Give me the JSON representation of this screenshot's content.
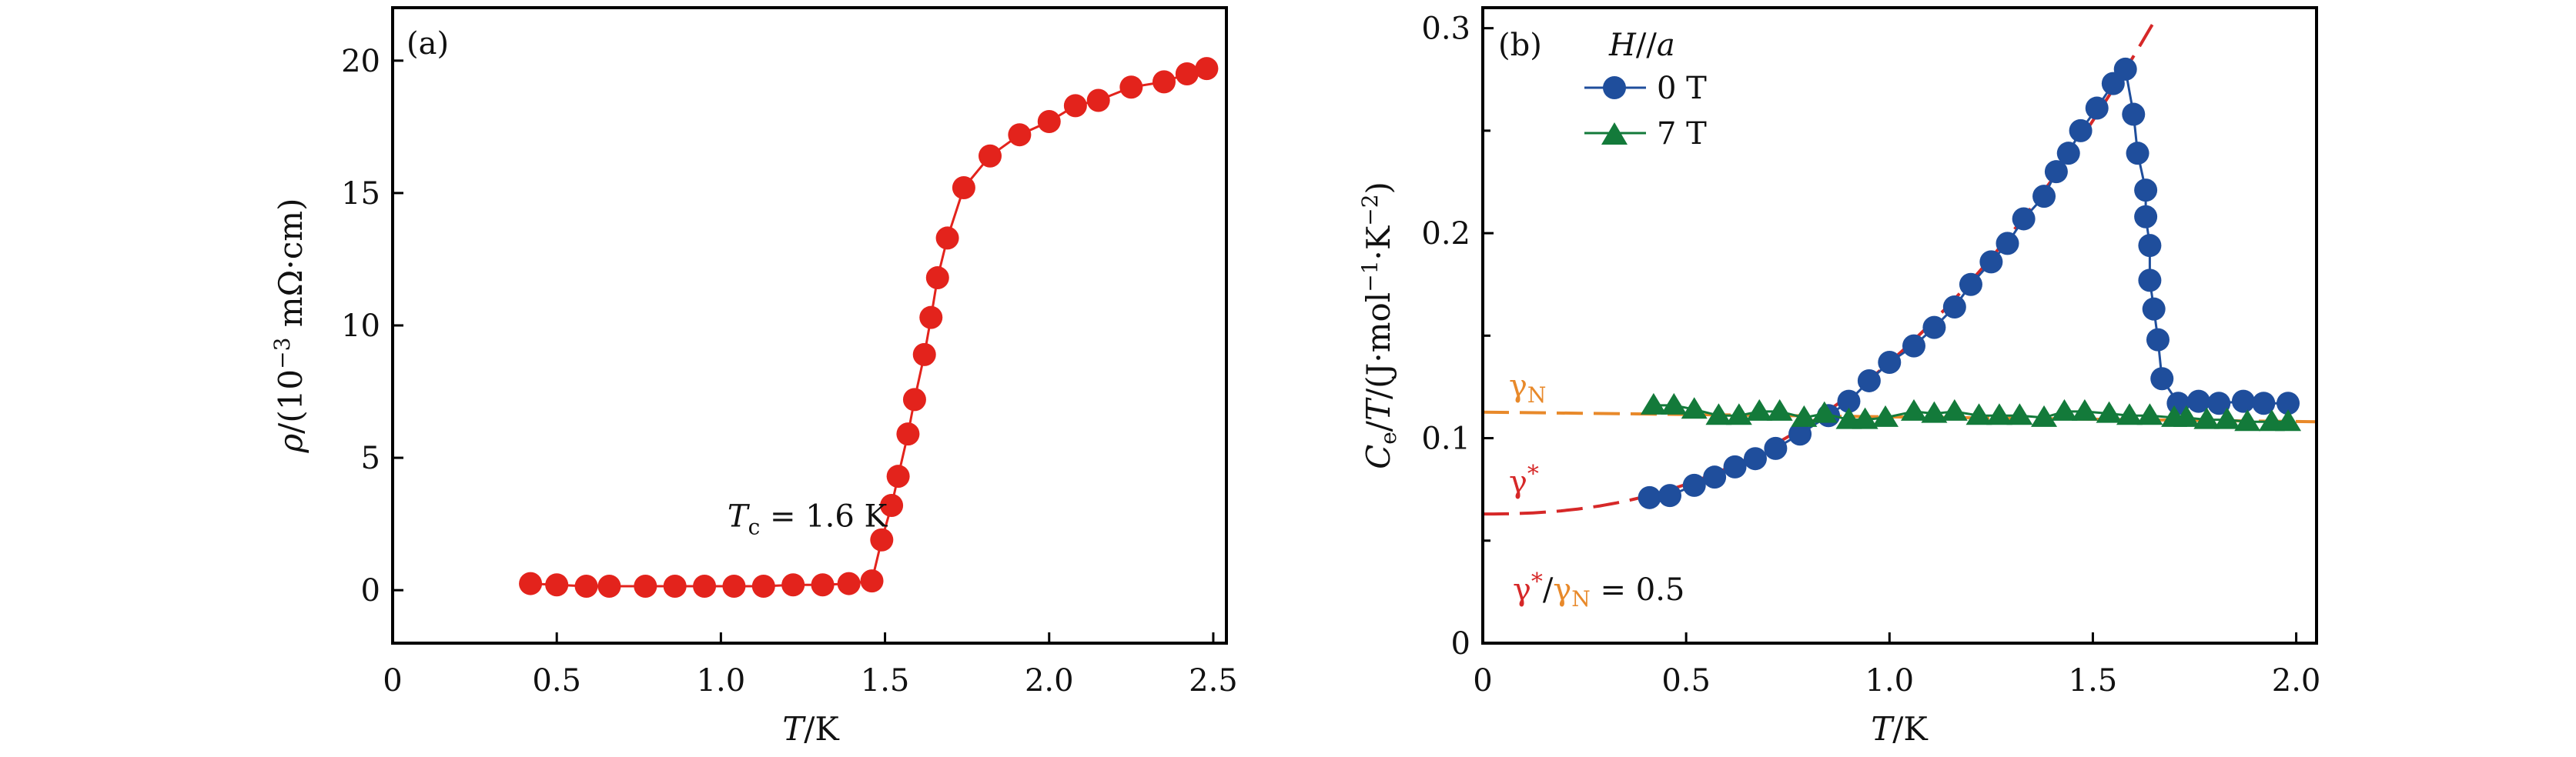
{
  "chart_data": [
    {
      "type": "line",
      "panel_label": "(a)",
      "title": "",
      "xlabel": "T/K",
      "xlabel_parts": {
        "var": "T",
        "unit": "/K"
      },
      "ylabel": "ρ/(10^-3 mΩ·cm)",
      "ylabel_parts": {
        "var": "ρ",
        "pre": "/(10",
        "exp": "−3",
        "post": " mΩ·cm)"
      },
      "xlim": [
        0,
        2.54
      ],
      "ylim": [
        -2,
        22
      ],
      "xticks": [
        0,
        0.5,
        1.0,
        1.5,
        2.0,
        2.5
      ],
      "xtick_labels": [
        "0",
        "0.5",
        "1.0",
        "1.5",
        "2.0",
        "2.5"
      ],
      "yticks": [
        0,
        5,
        10,
        15,
        20
      ],
      "ytick_labels": [
        "0",
        "5",
        "10",
        "15",
        "20"
      ],
      "grid": false,
      "annotation": {
        "var": "T",
        "sub": "c",
        "text": " = 1.6 K",
        "x": 1.02,
        "y": 2.4
      },
      "series": [
        {
          "name": "ρ(T)",
          "color": "#e3231c",
          "marker": "circle",
          "x": [
            0.42,
            0.5,
            0.59,
            0.66,
            0.77,
            0.86,
            0.95,
            1.04,
            1.13,
            1.22,
            1.31,
            1.39,
            1.46,
            1.49,
            1.52,
            1.54,
            1.57,
            1.59,
            1.62,
            1.64,
            1.66,
            1.69,
            1.74,
            1.82,
            1.91,
            2.0,
            2.08,
            2.15,
            2.25,
            2.35,
            2.42,
            2.48
          ],
          "y": [
            0.25,
            0.2,
            0.15,
            0.15,
            0.15,
            0.15,
            0.15,
            0.15,
            0.15,
            0.2,
            0.2,
            0.25,
            0.35,
            1.9,
            3.2,
            4.3,
            5.9,
            7.2,
            8.9,
            10.3,
            11.8,
            13.3,
            15.2,
            16.4,
            17.2,
            17.7,
            18.3,
            18.5,
            19.0,
            19.2,
            19.5,
            19.7
          ]
        }
      ]
    },
    {
      "type": "line",
      "panel_label": "(b)",
      "title": "",
      "xlabel": "T/K",
      "xlabel_parts": {
        "var": "T",
        "unit": "/K"
      },
      "ylabel": "Ce/T/(J·mol^-1·K^-2)",
      "ylabel_parts": {
        "var": "C",
        "sub": "e",
        "mid": "/",
        "var2": "T",
        "pre": "/(J·mol",
        "exp1": "−1",
        "mid2": "·K",
        "exp2": "−2",
        "post": ")"
      },
      "xlim": [
        0,
        2.05
      ],
      "ylim": [
        0,
        0.31
      ],
      "xticks": [
        0,
        0.5,
        1.0,
        1.5,
        2.0
      ],
      "xtick_labels": [
        "0",
        "0.5",
        "1.0",
        "1.5",
        "2.0"
      ],
      "yticks": [
        0,
        0.1,
        0.2,
        0.3
      ],
      "ytick_labels": [
        "0",
        "0.1",
        "0.2",
        "0.3"
      ],
      "yminor_ticks": [
        0.05,
        0.15,
        0.25
      ],
      "grid": false,
      "legend": {
        "title": "H//a",
        "title_parts": {
          "var": "H",
          "mid": "//",
          "var2": "a"
        },
        "position": "top-left",
        "entries": [
          "0 T",
          "7 T"
        ]
      },
      "series": [
        {
          "name": "0 T",
          "color": "#1f4e9c",
          "marker": "circle",
          "x": [
            0.41,
            0.46,
            0.52,
            0.57,
            0.62,
            0.67,
            0.72,
            0.78,
            0.85,
            0.9,
            0.95,
            1.0,
            1.06,
            1.11,
            1.16,
            1.2,
            1.25,
            1.29,
            1.33,
            1.38,
            1.41,
            1.44,
            1.47,
            1.51,
            1.55,
            1.58,
            1.6,
            1.61,
            1.63,
            1.63,
            1.64,
            1.64,
            1.65,
            1.66,
            1.67,
            1.71,
            1.76,
            1.81,
            1.87,
            1.92,
            1.98
          ],
          "y": [
            0.071,
            0.072,
            0.077,
            0.081,
            0.086,
            0.09,
            0.095,
            0.102,
            0.111,
            0.118,
            0.128,
            0.137,
            0.145,
            0.154,
            0.164,
            0.175,
            0.186,
            0.195,
            0.207,
            0.218,
            0.23,
            0.239,
            0.25,
            0.261,
            0.273,
            0.28,
            0.258,
            0.239,
            0.221,
            0.208,
            0.194,
            0.177,
            0.163,
            0.148,
            0.129,
            0.117,
            0.118,
            0.117,
            0.118,
            0.117,
            0.117
          ]
        },
        {
          "name": "7 T",
          "color": "#137a3a",
          "marker": "triangle",
          "x": [
            0.42,
            0.47,
            0.52,
            0.58,
            0.63,
            0.68,
            0.73,
            0.79,
            0.84,
            0.9,
            0.94,
            0.99,
            1.06,
            1.11,
            1.16,
            1.22,
            1.27,
            1.32,
            1.38,
            1.43,
            1.48,
            1.54,
            1.59,
            1.64,
            1.7,
            1.73,
            1.78,
            1.83,
            1.88,
            1.94,
            1.98
          ],
          "y": [
            0.116,
            0.116,
            0.114,
            0.111,
            0.111,
            0.113,
            0.113,
            0.11,
            0.112,
            0.109,
            0.109,
            0.11,
            0.113,
            0.112,
            0.113,
            0.111,
            0.111,
            0.111,
            0.11,
            0.113,
            0.113,
            0.112,
            0.111,
            0.111,
            0.11,
            0.11,
            0.109,
            0.109,
            0.108,
            0.108,
            0.108
          ]
        }
      ],
      "fits": [
        {
          "name": "γN",
          "label_parts": {
            "sym": "γ",
            "sub": "N"
          },
          "color": "#e8892a",
          "style": "dashed",
          "kind": "linear",
          "y_at_xmin": 0.1127,
          "y_at_xmax": 0.108
        },
        {
          "name": "γ*",
          "label_parts": {
            "sym": "γ",
            "sup": "*"
          },
          "color": "#d62828",
          "style": "dashed",
          "kind": "power",
          "gamma_star": 0.063,
          "coef": 0.074,
          "exponent": 2.35,
          "x_end": 1.646
        }
      ],
      "ratio_annotation": {
        "num": "γ",
        "num_sup": "*",
        "slash": "/",
        "den": "γ",
        "den_sub": "N",
        "text": " = 0.5"
      }
    }
  ]
}
